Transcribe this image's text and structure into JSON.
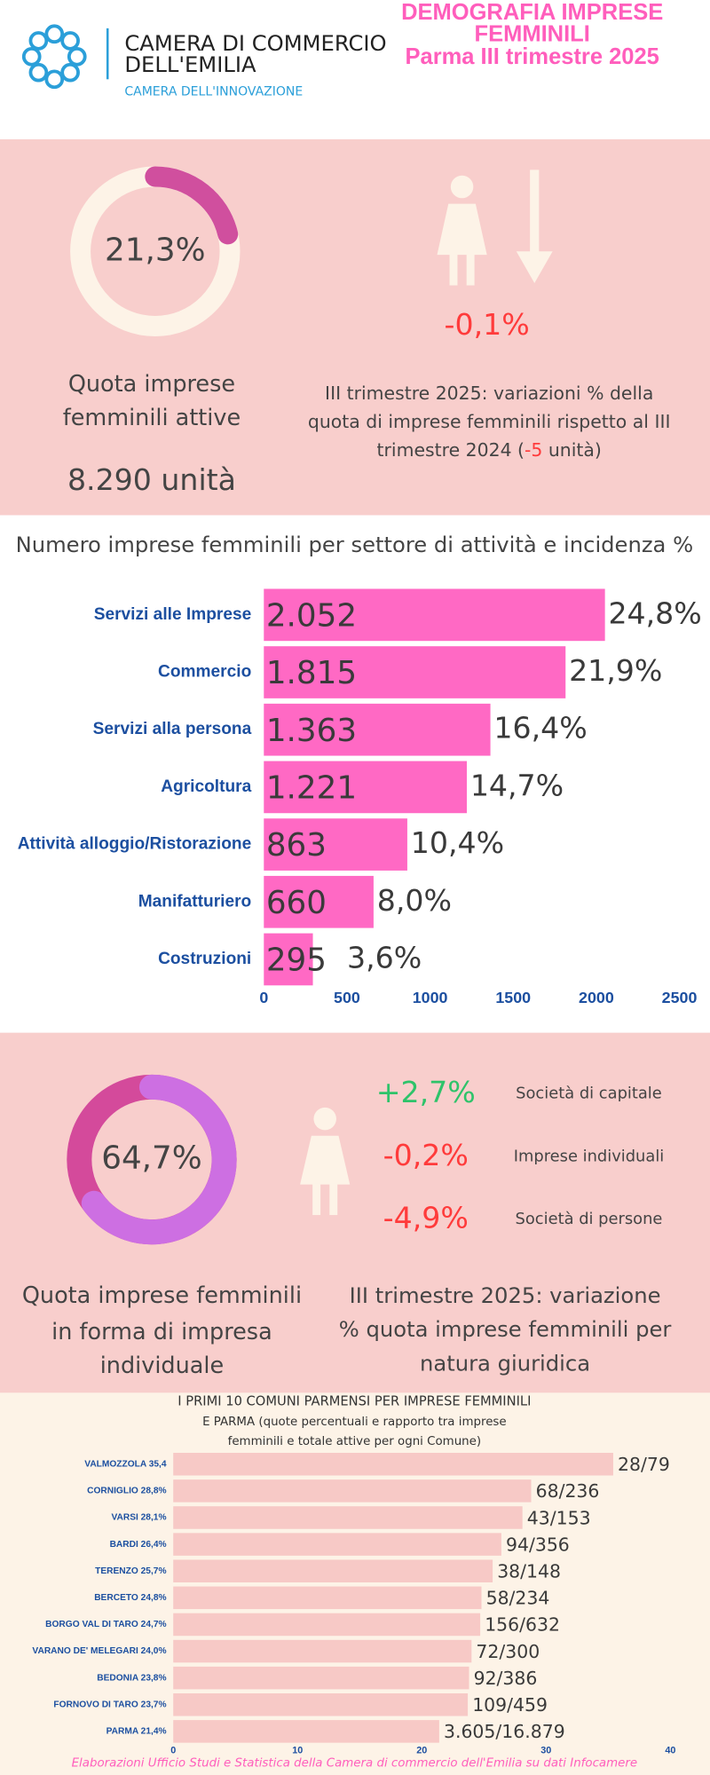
{
  "header": {
    "org_lines": [
      "CAMERA DI COMMERCIO",
      "DELL'EMILIA"
    ],
    "org_tagline": "CAMERA DELL'INNOVAZIONE",
    "title_lines": [
      "DEMOGRAFIA IMPRESE",
      "FEMMINILI",
      "Parma III trimestre 2025"
    ]
  },
  "panel1": {
    "caption_lines": [
      "Quota imprese",
      "femminili attive"
    ],
    "units": "8.290 unità",
    "change": "-0,1%",
    "note_lines": [
      "III trimestre 2025: variazioni % della",
      "quota di imprese femminili rispetto al III"
    ],
    "note_last": [
      "trimestre 2024 (",
      "-5",
      " unità)"
    ]
  },
  "panel2": {
    "caption_lines": [
      "Quota imprese femminili",
      "in forma di impresa",
      "individuale"
    ],
    "note_lines": [
      "III trimestre 2025: variazione",
      "% quota imprese femminili per",
      "natura giuridica"
    ],
    "changes": [
      {
        "value": "+2,7%",
        "label": "Società di capitale",
        "color": "#2ec36a"
      },
      {
        "value": "-0,2%",
        "label": "Imprese individuali",
        "color": "#ff3b3b"
      },
      {
        "value": "-4,9%",
        "label": "Società di persone",
        "color": "#ff3b3b"
      }
    ]
  },
  "chart_data": [
    {
      "type": "donut",
      "values": [
        21.3
      ],
      "value_labels": [
        "21,3%"
      ],
      "color": "#d04f9e",
      "track_color": "#fdf3e7"
    },
    {
      "type": "hbar",
      "title": "Numero imprese femminili per settore di attività e incidenza %",
      "categories": [
        "Servizi alle Imprese",
        "Commercio",
        "Servizi alla persona",
        "Agricoltura",
        "Attività alloggio/Ristorazione",
        "Manifatturiero",
        "Costruzioni"
      ],
      "values": [
        2052,
        1815,
        1363,
        1221,
        863,
        660,
        295
      ],
      "value_labels": [
        "2.052",
        "1.815",
        "1.363",
        "1.221",
        "863",
        "660",
        "295"
      ],
      "incidence_labels": [
        "24,8%",
        "21,9%",
        "16,4%",
        "14,7%",
        "10,4%",
        "8,0%",
        "3,6%"
      ],
      "color": "#ff69c4",
      "xlim": [
        0,
        2500
      ],
      "xticks": [
        0,
        500,
        1000,
        1500,
        2000,
        2500
      ]
    },
    {
      "type": "donut",
      "values": [
        64.7
      ],
      "value_labels": [
        "64,7%"
      ],
      "color": "#cd6fe2",
      "track_color": "#d44a9b"
    },
    {
      "type": "hbar",
      "title_lines": [
        "I PRIMI 10 COMUNI PARMENSI PER IMPRESE FEMMINILI",
        "E PARMA  (quote percentuali e rapporto tra imprese",
        "femminili e totale attive per ogni Comune)"
      ],
      "categories": [
        "VALMOZZOLA 35,4",
        "CORNIGLIO 28,8%",
        "VARSI 28,1%",
        "BARDI 26,4%",
        "TERENZO 25,7%",
        "BERCETO 24,8%",
        "BORGO VAL DI TARO 24,7%",
        "VARANO DE' MELEGARI 24,0%",
        "BEDONIA 23,8%",
        "FORNOVO DI TARO 23,7%",
        "PARMA 21,4%"
      ],
      "values": [
        35.4,
        28.8,
        28.1,
        26.4,
        25.7,
        24.8,
        24.7,
        24.0,
        23.8,
        23.7,
        21.4
      ],
      "value_labels": [
        "28/79",
        "68/236",
        "43/153",
        "94/356",
        "38/148",
        "58/234",
        "156/632",
        "72/300",
        "92/386",
        "109/459",
        "3.605/16.879"
      ],
      "color": "#f7c9c6",
      "xlim": [
        0,
        40
      ],
      "xticks": [
        0,
        10,
        20,
        30,
        40
      ]
    }
  ],
  "footer": "Elaborazioni Ufficio Studi e Statistica della Camera di commercio  dell'Emilia su dati Infocamere"
}
